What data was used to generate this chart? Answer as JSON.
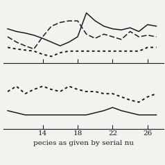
{
  "x": [
    10,
    11,
    12,
    13,
    14,
    15,
    16,
    17,
    18,
    19,
    20,
    21,
    22,
    23,
    24,
    25,
    26,
    27
  ],
  "top_solid": [
    7.0,
    6.5,
    6.2,
    5.8,
    5.2,
    4.5,
    3.8,
    4.5,
    5.5,
    10.0,
    8.5,
    7.5,
    7.0,
    6.8,
    7.2,
    6.5,
    7.8,
    7.5
  ],
  "top_dashed": [
    5.5,
    4.5,
    3.8,
    3.2,
    5.5,
    7.5,
    8.2,
    8.5,
    8.5,
    6.0,
    5.2,
    6.0,
    5.5,
    5.0,
    6.5,
    5.5,
    5.8,
    5.5
  ],
  "top_dotted": [
    3.5,
    3.2,
    3.0,
    2.8,
    2.2,
    1.8,
    2.5,
    2.8,
    2.8,
    2.8,
    2.8,
    2.8,
    2.8,
    2.8,
    2.8,
    2.8,
    3.5,
    3.5
  ],
  "bot_dotted": [
    4.0,
    4.5,
    3.8,
    4.2,
    4.5,
    4.2,
    4.0,
    4.5,
    4.2,
    4.0,
    4.0,
    3.8,
    3.8,
    3.5,
    3.2,
    3.0,
    3.5,
    3.8
  ],
  "bot_solid": [
    2.2,
    2.0,
    1.8,
    1.8,
    1.8,
    1.8,
    1.8,
    1.8,
    1.8,
    1.8,
    2.0,
    2.2,
    2.5,
    2.2,
    2.0,
    1.8,
    1.8,
    1.8
  ],
  "xticks": [
    14,
    18,
    22,
    26
  ],
  "xlabel": "pecies as given by serial nu",
  "background_color": "#f2f2ee",
  "line_color": "#1a1a1a"
}
